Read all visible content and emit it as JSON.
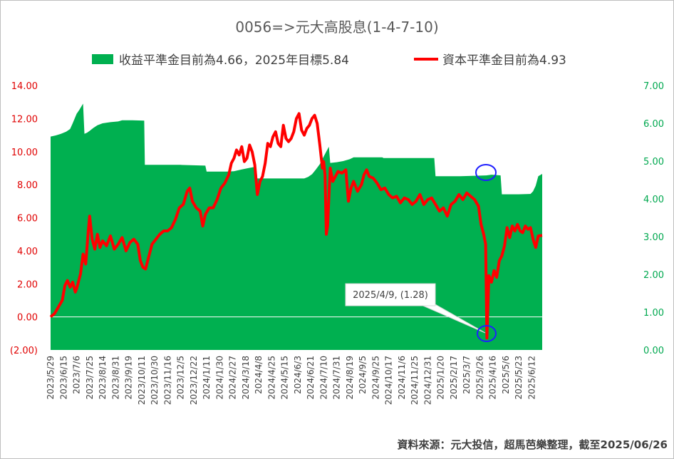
{
  "chart_data": {
    "type": "area+line",
    "title": "0056=>元大高股息(1-4-7-10)",
    "legend": {
      "position": "top",
      "entries": [
        {
          "name": "收益平準金目前為4.66，2025年目標5.84",
          "type": "area",
          "color": "#00b050"
        },
        {
          "name": "資本平準金目前為4.93",
          "type": "line",
          "color": "#ff0000"
        }
      ]
    },
    "y_left": {
      "range": [
        -2,
        14
      ],
      "tick_labels": [
        "(2.00)",
        "0.00",
        "2.00",
        "4.00",
        "6.00",
        "8.00",
        "10.00",
        "12.00",
        "14.00"
      ],
      "tick_values": [
        -2,
        0,
        2,
        4,
        6,
        8,
        10,
        12,
        14
      ],
      "color": "#e00000"
    },
    "y_right": {
      "range": [
        0,
        7
      ],
      "tick_labels": [
        "0.00",
        "1.00",
        "2.00",
        "3.00",
        "4.00",
        "5.00",
        "6.00",
        "7.00"
      ],
      "tick_values": [
        0,
        1,
        2,
        3,
        4,
        5,
        6,
        7
      ],
      "color": "#00a84f"
    },
    "x_tick_labels": [
      "2023/5/29",
      "2023/6/15",
      "2023/7/6",
      "2023/7/25",
      "2023/8/14",
      "2023/8/31",
      "2023/9/19",
      "2023/10/11",
      "2023/10/30",
      "2023/11/16",
      "2023/12/5",
      "2023/12/22",
      "2024/1/11",
      "2024/1/30",
      "2024/2/27",
      "2024/3/18",
      "2024/4/8",
      "2024/4/25",
      "2024/5/15",
      "2024/6/3",
      "2024/6/21",
      "2024/7/10",
      "2024/7/31",
      "2024/8/19",
      "2024/9/5",
      "2024/9/25",
      "2024/10/17",
      "2024/11/6",
      "2024/11/25",
      "2024/12/31",
      "2025/1/20",
      "2025/2/17",
      "2025/3/7",
      "2025/3/26",
      "2025/4/16",
      "2025/5/6",
      "2025/5/23",
      "2025/6/12"
    ],
    "series": [
      {
        "name": "收益平準金目前為4.66，2025年目標5.84",
        "axis": "right",
        "type": "area",
        "color": "#00b050",
        "points": [
          [
            0,
            5.65
          ],
          [
            0.4,
            5.68
          ],
          [
            0.8,
            5.72
          ],
          [
            1.2,
            5.78
          ],
          [
            1.5,
            5.85
          ],
          [
            1.7,
            6.0
          ],
          [
            2.0,
            6.25
          ],
          [
            2.2,
            6.35
          ],
          [
            2.5,
            6.52
          ],
          [
            2.6,
            5.72
          ],
          [
            2.8,
            5.75
          ],
          [
            3.0,
            5.8
          ],
          [
            3.3,
            5.88
          ],
          [
            3.6,
            5.95
          ],
          [
            4.0,
            6.0
          ],
          [
            4.6,
            6.03
          ],
          [
            5.2,
            6.05
          ],
          [
            5.5,
            6.08
          ],
          [
            6.3,
            6.08
          ],
          [
            7.2,
            6.07
          ],
          [
            7.25,
            4.9
          ],
          [
            8.5,
            4.9
          ],
          [
            10.0,
            4.9
          ],
          [
            11.9,
            4.88
          ],
          [
            12.0,
            4.72
          ],
          [
            13.5,
            4.72
          ],
          [
            14.1,
            4.73
          ],
          [
            14.7,
            4.78
          ],
          [
            15.3,
            4.82
          ],
          [
            15.8,
            4.85
          ],
          [
            15.9,
            4.54
          ],
          [
            17.5,
            4.54
          ],
          [
            19.5,
            4.54
          ],
          [
            19.8,
            4.58
          ],
          [
            20.1,
            4.65
          ],
          [
            20.4,
            4.78
          ],
          [
            20.7,
            4.92
          ],
          [
            21.0,
            5.12
          ],
          [
            21.4,
            5.38
          ],
          [
            21.5,
            4.95
          ],
          [
            22.0,
            4.97
          ],
          [
            22.5,
            5.0
          ],
          [
            23.0,
            5.05
          ],
          [
            23.3,
            5.1
          ],
          [
            24.5,
            5.1
          ],
          [
            25.5,
            5.1
          ],
          [
            25.6,
            5.08
          ],
          [
            26.5,
            5.08
          ],
          [
            28.0,
            5.08
          ],
          [
            29.5,
            5.08
          ],
          [
            29.6,
            4.6
          ],
          [
            31.5,
            4.6
          ],
          [
            33.5,
            4.62
          ],
          [
            33.9,
            4.64
          ],
          [
            34.3,
            4.63
          ],
          [
            34.6,
            4.62
          ],
          [
            34.7,
            4.12
          ],
          [
            36.0,
            4.12
          ],
          [
            36.9,
            4.13
          ],
          [
            37.1,
            4.2
          ],
          [
            37.3,
            4.35
          ],
          [
            37.5,
            4.6
          ],
          [
            37.8,
            4.66
          ]
        ]
      },
      {
        "name": "資本平準金目前為4.93",
        "axis": "left",
        "type": "line",
        "color": "#ff0000",
        "points": [
          [
            0,
            0.0
          ],
          [
            0.3,
            0.2
          ],
          [
            0.6,
            0.6
          ],
          [
            0.9,
            1.0
          ],
          [
            1.1,
            1.9
          ],
          [
            1.3,
            2.2
          ],
          [
            1.5,
            1.8
          ],
          [
            1.7,
            2.1
          ],
          [
            1.9,
            1.5
          ],
          [
            2.0,
            1.7
          ],
          [
            2.3,
            2.6
          ],
          [
            2.5,
            3.8
          ],
          [
            2.7,
            3.2
          ],
          [
            2.9,
            5.2
          ],
          [
            3.0,
            6.1
          ],
          [
            3.2,
            4.7
          ],
          [
            3.4,
            4.1
          ],
          [
            3.6,
            5.0
          ],
          [
            3.8,
            4.2
          ],
          [
            4.0,
            4.6
          ],
          [
            4.3,
            4.3
          ],
          [
            4.6,
            4.9
          ],
          [
            4.9,
            4.1
          ],
          [
            5.2,
            4.4
          ],
          [
            5.5,
            4.8
          ],
          [
            5.8,
            4.0
          ],
          [
            6.1,
            4.5
          ],
          [
            6.4,
            4.7
          ],
          [
            6.7,
            4.4
          ],
          [
            6.9,
            3.4
          ],
          [
            7.1,
            3.0
          ],
          [
            7.3,
            2.9
          ],
          [
            7.5,
            3.5
          ],
          [
            7.8,
            4.4
          ],
          [
            8.1,
            4.7
          ],
          [
            8.4,
            5.0
          ],
          [
            8.7,
            5.2
          ],
          [
            9.0,
            5.2
          ],
          [
            9.3,
            5.4
          ],
          [
            9.6,
            5.9
          ],
          [
            9.9,
            6.6
          ],
          [
            10.2,
            6.8
          ],
          [
            10.5,
            7.6
          ],
          [
            10.7,
            7.8
          ],
          [
            10.9,
            7.0
          ],
          [
            11.2,
            6.6
          ],
          [
            11.5,
            6.4
          ],
          [
            11.7,
            5.5
          ],
          [
            11.9,
            6.2
          ],
          [
            12.2,
            6.6
          ],
          [
            12.5,
            6.6
          ],
          [
            12.8,
            7.1
          ],
          [
            13.1,
            7.8
          ],
          [
            13.4,
            8.1
          ],
          [
            13.7,
            8.6
          ],
          [
            13.9,
            9.3
          ],
          [
            14.1,
            9.6
          ],
          [
            14.3,
            10.1
          ],
          [
            14.5,
            9.8
          ],
          [
            14.7,
            10.3
          ],
          [
            14.9,
            9.4
          ],
          [
            15.1,
            9.6
          ],
          [
            15.3,
            10.4
          ],
          [
            15.5,
            10.0
          ],
          [
            15.7,
            9.2
          ],
          [
            15.9,
            7.4
          ],
          [
            16.1,
            8.2
          ],
          [
            16.3,
            8.5
          ],
          [
            16.5,
            9.3
          ],
          [
            16.7,
            10.5
          ],
          [
            16.9,
            10.3
          ],
          [
            17.1,
            10.9
          ],
          [
            17.3,
            11.2
          ],
          [
            17.5,
            10.5
          ],
          [
            17.7,
            10.3
          ],
          [
            17.9,
            11.6
          ],
          [
            18.1,
            10.8
          ],
          [
            18.3,
            10.6
          ],
          [
            18.5,
            10.8
          ],
          [
            18.7,
            11.2
          ],
          [
            18.9,
            12.0
          ],
          [
            19.1,
            12.3
          ],
          [
            19.3,
            11.3
          ],
          [
            19.5,
            11.0
          ],
          [
            19.7,
            11.4
          ],
          [
            19.9,
            11.6
          ],
          [
            20.1,
            12.0
          ],
          [
            20.3,
            12.2
          ],
          [
            20.5,
            11.7
          ],
          [
            20.7,
            10.4
          ],
          [
            20.9,
            9.0
          ],
          [
            21.0,
            9.4
          ],
          [
            21.1,
            8.6
          ],
          [
            21.2,
            5.0
          ],
          [
            21.3,
            5.5
          ],
          [
            21.5,
            9.0
          ],
          [
            21.7,
            8.2
          ],
          [
            21.9,
            8.5
          ],
          [
            22.1,
            8.8
          ],
          [
            22.4,
            8.7
          ],
          [
            22.7,
            8.9
          ],
          [
            22.9,
            7.0
          ],
          [
            23.1,
            7.8
          ],
          [
            23.3,
            8.2
          ],
          [
            23.6,
            7.6
          ],
          [
            23.9,
            8.0
          ],
          [
            24.1,
            8.6
          ],
          [
            24.3,
            8.9
          ],
          [
            24.5,
            8.5
          ],
          [
            24.8,
            8.4
          ],
          [
            25.1,
            8.1
          ],
          [
            25.4,
            7.7
          ],
          [
            25.7,
            7.8
          ],
          [
            26.0,
            7.4
          ],
          [
            26.3,
            7.2
          ],
          [
            26.6,
            7.3
          ],
          [
            26.9,
            6.9
          ],
          [
            27.2,
            7.2
          ],
          [
            27.5,
            7.1
          ],
          [
            27.8,
            6.8
          ],
          [
            28.1,
            7.0
          ],
          [
            28.4,
            7.4
          ],
          [
            28.7,
            6.8
          ],
          [
            29.0,
            7.1
          ],
          [
            29.3,
            7.2
          ],
          [
            29.6,
            6.8
          ],
          [
            29.9,
            6.4
          ],
          [
            30.2,
            6.6
          ],
          [
            30.5,
            6.1
          ],
          [
            30.8,
            6.8
          ],
          [
            31.1,
            7.0
          ],
          [
            31.4,
            7.4
          ],
          [
            31.7,
            7.1
          ],
          [
            32.0,
            7.5
          ],
          [
            32.3,
            7.3
          ],
          [
            32.6,
            7.1
          ],
          [
            32.9,
            6.7
          ],
          [
            33.1,
            5.6
          ],
          [
            33.3,
            5.0
          ],
          [
            33.45,
            4.4
          ],
          [
            33.55,
            -1.28
          ],
          [
            33.7,
            2.5
          ],
          [
            33.9,
            2.1
          ],
          [
            34.1,
            2.8
          ],
          [
            34.3,
            2.4
          ],
          [
            34.5,
            3.4
          ],
          [
            34.7,
            3.7
          ],
          [
            34.9,
            4.3
          ],
          [
            35.1,
            5.4
          ],
          [
            35.3,
            4.8
          ],
          [
            35.5,
            5.5
          ],
          [
            35.7,
            5.2
          ],
          [
            35.9,
            5.6
          ],
          [
            36.1,
            5.2
          ],
          [
            36.3,
            5.1
          ],
          [
            36.5,
            5.5
          ],
          [
            36.7,
            5.3
          ],
          [
            36.9,
            5.4
          ],
          [
            37.1,
            4.7
          ],
          [
            37.3,
            4.2
          ],
          [
            37.5,
            4.9
          ],
          [
            37.8,
            4.93
          ]
        ]
      }
    ],
    "annotations": [
      {
        "text": "2025/4/9, (1.28)",
        "marks": "low point of red line"
      }
    ],
    "source": "資料來源：元大投信，超馬芭樂整理，截至2025/06/26",
    "grid": false
  }
}
